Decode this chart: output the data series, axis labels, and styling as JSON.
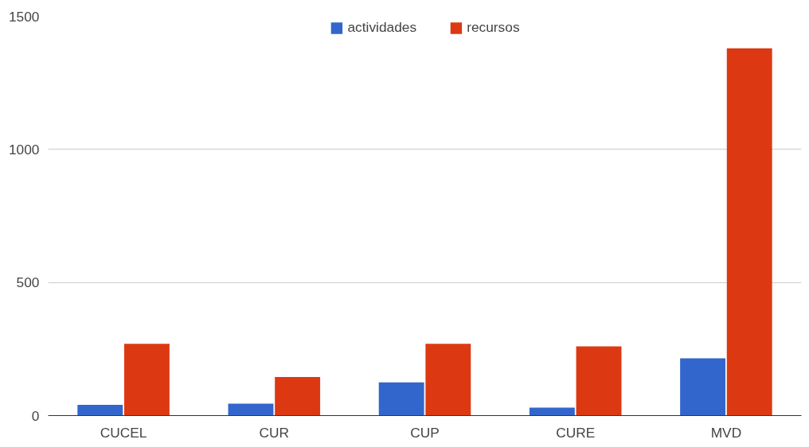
{
  "chart_data": {
    "type": "bar",
    "categories": [
      "CUCEL",
      "CUR",
      "CUP",
      "CURE",
      "MVD"
    ],
    "series": [
      {
        "name": "actividades",
        "color": "#3366cc",
        "values": [
          40,
          45,
          125,
          30,
          215
        ]
      },
      {
        "name": "recursos",
        "color": "#dc3912",
        "values": [
          270,
          145,
          270,
          260,
          1380
        ]
      }
    ],
    "ylim": [
      0,
      1500
    ],
    "yticks": [
      0,
      500,
      1000,
      1500
    ],
    "grid": "y",
    "legend": "top"
  }
}
